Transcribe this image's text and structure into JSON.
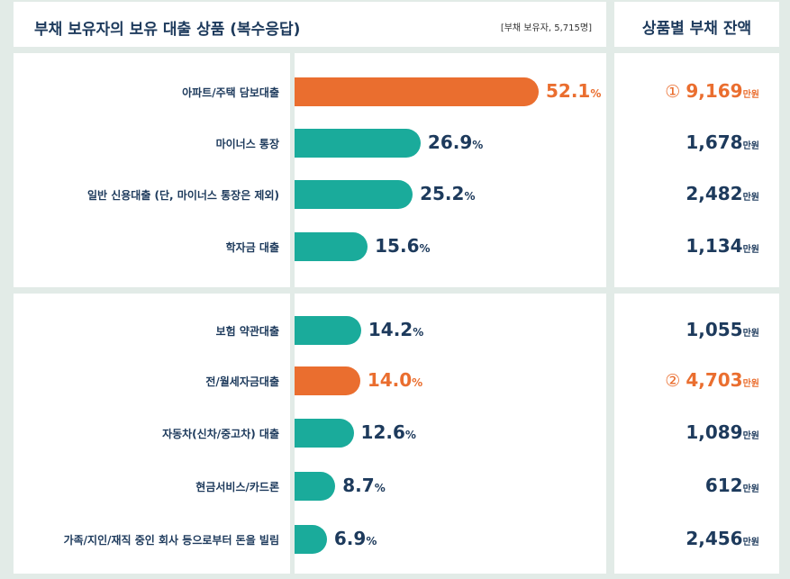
{
  "header": {
    "title": "부채 보유자의 보유 대출 상품 (복수응답)",
    "note": "[부채 보유자, 5,715명]",
    "right_title": "상품별 부채 잔액"
  },
  "colors": {
    "highlight": "#ea6e2f",
    "normal": "#1aab9b",
    "text": "#1d3a5c"
  },
  "units": {
    "pct": "%",
    "balance": "만원"
  },
  "chart_data": {
    "type": "bar",
    "orientation": "horizontal",
    "title": "부채 보유자의 보유 대출 상품 (복수응답)",
    "categories": [
      "아파트/주택 담보대출",
      "마이너스 통장",
      "일반 신용대출 (단, 마이너스 통장은 제외)",
      "학자금 대출",
      "보험 약관대출",
      "전/월세자금대출",
      "자동차(신차/중고차) 대출",
      "현금서비스/카드론",
      "가족/지인/재직 중인 회사 등으로부터 돈을 빌림"
    ],
    "values": [
      52.1,
      26.9,
      25.2,
      15.6,
      14.2,
      14.0,
      12.6,
      8.7,
      6.9
    ],
    "value_labels": [
      "52.1",
      "26.9",
      "25.2",
      "15.6",
      "14.2",
      "14.0",
      "12.6",
      "8.7",
      "6.9"
    ],
    "highlight": [
      true,
      false,
      false,
      false,
      false,
      true,
      false,
      false,
      false
    ],
    "balances": [
      "9,169",
      "1,678",
      "2,482",
      "1,134",
      "1,055",
      "4,703",
      "1,089",
      "612",
      "2,456"
    ],
    "balance_marks": [
      "①",
      "",
      "",
      "",
      "",
      "②",
      "",
      "",
      ""
    ],
    "xlim": [
      0,
      60
    ],
    "grid": false
  }
}
